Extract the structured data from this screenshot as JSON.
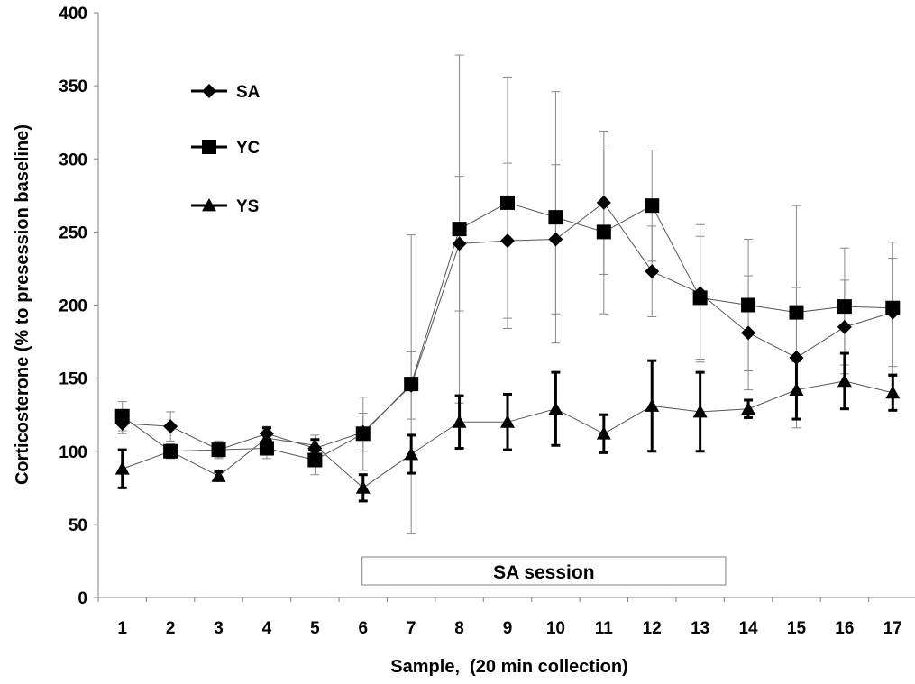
{
  "chart_data": {
    "type": "line",
    "title": "",
    "xlabel": "Sample,  (20 min collection)",
    "ylabel": "Corticosterone (% to presession baseline)",
    "ylim": [
      0,
      400
    ],
    "yticks": [
      0,
      50,
      100,
      150,
      200,
      250,
      300,
      350,
      400
    ],
    "x": [
      1,
      2,
      3,
      4,
      5,
      6,
      7,
      8,
      9,
      10,
      11,
      12,
      13,
      14,
      15,
      16,
      17
    ],
    "grid": false,
    "legend_position": "top-left",
    "annotation": {
      "label": "SA session",
      "x_range": [
        5.98,
        13.53
      ]
    },
    "series": [
      {
        "name": "SA",
        "marker": "diamond",
        "values": [
          119,
          117,
          101,
          112,
          102,
          113,
          145,
          242,
          244,
          245,
          270,
          223,
          208,
          181,
          164,
          185,
          195
        ],
        "err": [
          7,
          10,
          6,
          5,
          9,
          13,
          23,
          46,
          53,
          51,
          49,
          31,
          47,
          39,
          48,
          32,
          37
        ]
      },
      {
        "name": "YC",
        "marker": "square",
        "values": [
          124,
          100,
          101,
          102,
          94,
          112,
          146,
          252,
          270,
          260,
          250,
          268,
          205,
          200,
          195,
          199,
          198
        ],
        "err": [
          10,
          5,
          5,
          7,
          10,
          25,
          102,
          119,
          86,
          86,
          56,
          38,
          42,
          45,
          73,
          40,
          45
        ]
      },
      {
        "name": "YS",
        "marker": "triangle",
        "values": [
          88,
          100,
          83,
          109,
          104,
          75,
          98,
          120,
          120,
          129,
          112,
          131,
          127,
          129,
          142,
          148,
          140
        ],
        "err": [
          13,
          4,
          3,
          7,
          4,
          9,
          13,
          18,
          19,
          25,
          13,
          31,
          27,
          6,
          20,
          19,
          12
        ]
      }
    ]
  }
}
